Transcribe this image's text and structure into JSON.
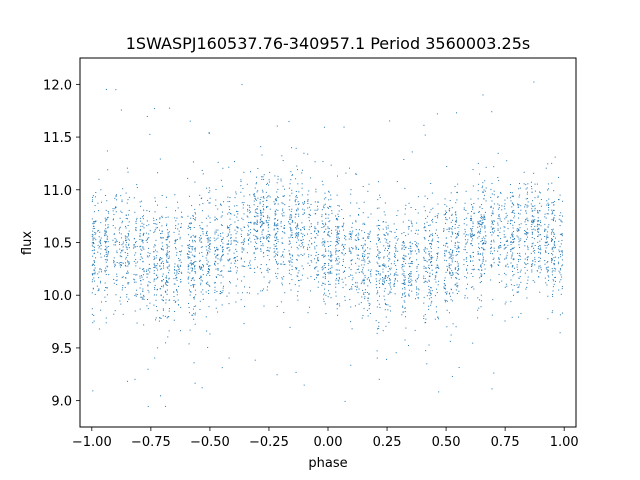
{
  "chart_data": {
    "type": "scatter",
    "title": "1SWASPJ160537.76-340957.1 Period 3560003.25s",
    "xlabel": "phase",
    "ylabel": "flux",
    "xlim": [
      -1.05,
      1.05
    ],
    "ylim": [
      8.75,
      12.25
    ],
    "xticks": [
      -1.0,
      -0.75,
      -0.5,
      -0.25,
      0.0,
      0.25,
      0.5,
      0.75,
      1.0
    ],
    "xtick_labels": [
      "−1.00",
      "−0.75",
      "−0.50",
      "−0.25",
      "0.00",
      "0.25",
      "0.50",
      "0.75",
      "1.00"
    ],
    "yticks": [
      9.0,
      9.5,
      10.0,
      10.5,
      11.0,
      11.5,
      12.0
    ],
    "ytick_labels": [
      "9.0",
      "9.5",
      "10.0",
      "10.5",
      "11.0",
      "11.5",
      "12.0"
    ],
    "grid": false,
    "marker_color": "#1f77b4",
    "series": [
      {
        "phase_profile": [
          [
            -1.0,
            10.42
          ],
          [
            -0.9,
            10.5
          ],
          [
            -0.8,
            10.38
          ],
          [
            -0.7,
            10.3
          ],
          [
            -0.6,
            10.32
          ],
          [
            -0.5,
            10.4
          ],
          [
            -0.4,
            10.55
          ],
          [
            -0.3,
            10.65
          ],
          [
            -0.2,
            10.6
          ],
          [
            -0.1,
            10.62
          ],
          [
            0.0,
            10.45
          ],
          [
            0.1,
            10.4
          ],
          [
            0.2,
            10.3
          ],
          [
            0.3,
            10.28
          ],
          [
            0.4,
            10.35
          ],
          [
            0.5,
            10.38
          ],
          [
            0.6,
            10.52
          ],
          [
            0.7,
            10.62
          ],
          [
            0.8,
            10.55
          ],
          [
            0.9,
            10.6
          ],
          [
            1.0,
            10.4
          ]
        ],
        "flux_spread": 0.28,
        "flux_range": [
          8.95,
          12.1
        ]
      }
    ]
  }
}
